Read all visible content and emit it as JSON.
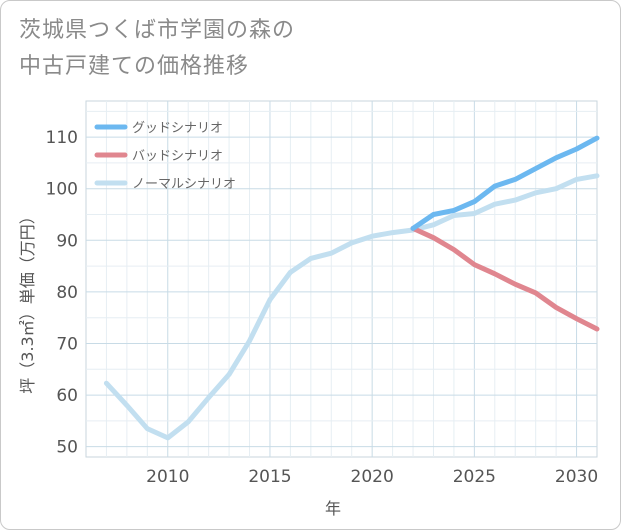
{
  "title": {
    "line1": "茨城県つくば市学園の森の",
    "line2": "中古戸建ての価格推移"
  },
  "chart_data": {
    "type": "line",
    "xlabel": "年",
    "ylabel": "坪（3.3㎡）単価（万円）",
    "xlim": [
      2006,
      2031
    ],
    "ylim": [
      48,
      117
    ],
    "xticks": [
      2010,
      2015,
      2020,
      2025,
      2030
    ],
    "yticks": [
      50,
      60,
      70,
      80,
      90,
      100,
      110
    ],
    "xtick_labels": [
      "2010",
      "2015",
      "2020",
      "2025",
      "2030"
    ],
    "ytick_labels": [
      "50",
      "60",
      "70",
      "80",
      "90",
      "100",
      "110"
    ],
    "grid": true,
    "legend_position": "top-left",
    "series": [
      {
        "name": "グッドシナリオ",
        "color": "#6cb8f0",
        "x": [
          2022,
          2023,
          2024,
          2025,
          2026,
          2027,
          2028,
          2029,
          2030,
          2031
        ],
        "y": [
          92.3,
          95.0,
          95.8,
          97.5,
          100.5,
          101.8,
          103.9,
          106.0,
          107.7,
          109.8
        ]
      },
      {
        "name": "バッドシナリオ",
        "color": "#e0868f",
        "x": [
          2022,
          2023,
          2024,
          2025,
          2026,
          2027,
          2028,
          2029,
          2030,
          2031
        ],
        "y": [
          92.3,
          90.5,
          88.2,
          85.3,
          83.5,
          81.5,
          79.8,
          77.0,
          74.8,
          72.8
        ]
      },
      {
        "name": "ノーマルシナリオ",
        "color": "#c2dff0",
        "x": [
          2007,
          2008,
          2009,
          2010,
          2011,
          2012,
          2013,
          2014,
          2015,
          2016,
          2017,
          2018,
          2019,
          2020,
          2021,
          2022,
          2023,
          2024,
          2025,
          2026,
          2027,
          2028,
          2029,
          2030,
          2031
        ],
        "y": [
          62.3,
          58.0,
          53.5,
          51.7,
          54.8,
          59.5,
          64.0,
          70.5,
          78.5,
          83.8,
          86.5,
          87.5,
          89.5,
          90.8,
          91.5,
          92.0,
          93.0,
          94.8,
          95.2,
          97.0,
          97.8,
          99.2,
          100.0,
          101.8,
          102.5
        ]
      }
    ]
  }
}
